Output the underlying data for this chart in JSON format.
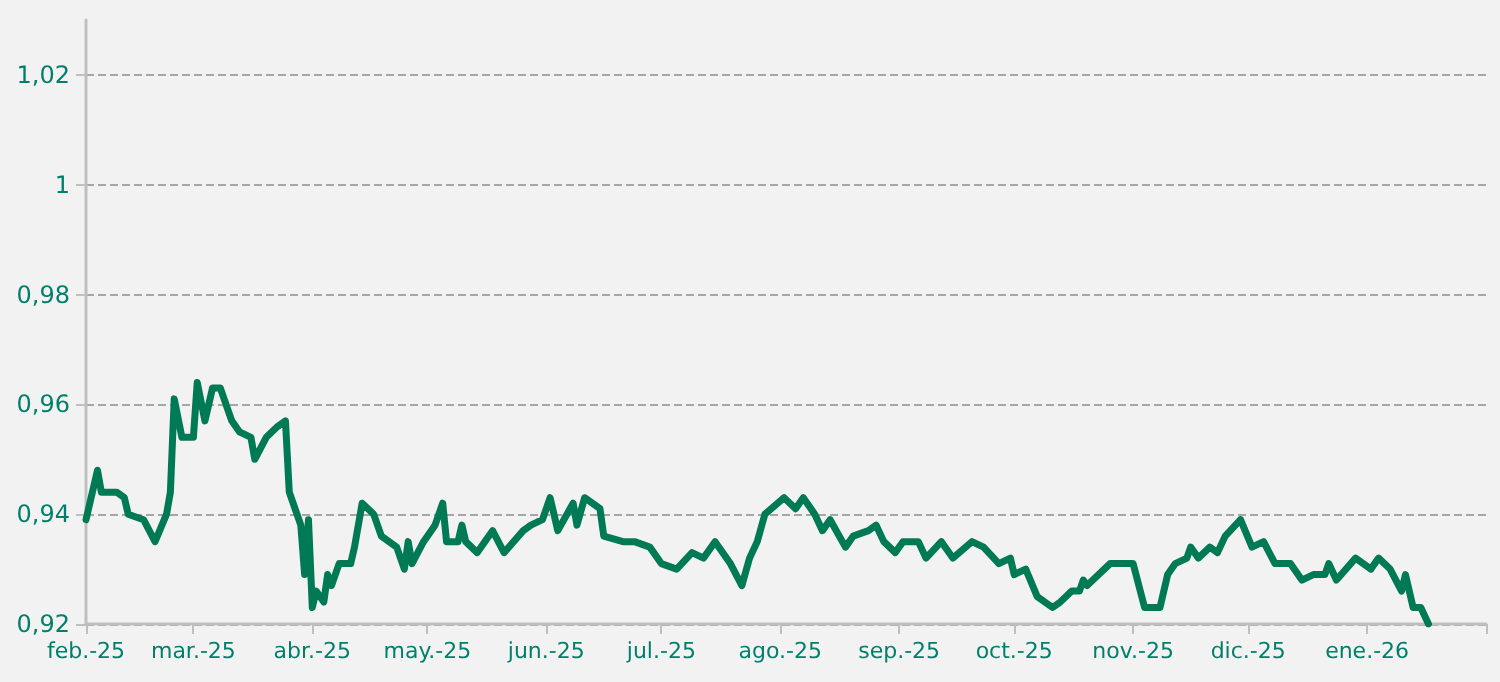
{
  "chart_data": {
    "type": "line",
    "line_style": "solid",
    "marker": "none",
    "grid": "y",
    "xlim": [
      "2025-02-01",
      "2026-02-01"
    ],
    "xticks": [
      {
        "value": "2025-02-01",
        "label": "feb.-25"
      },
      {
        "value": "2025-03-01",
        "label": "mar.-25"
      },
      {
        "value": "2025-04-01",
        "label": "abr.-25"
      },
      {
        "value": "2025-05-01",
        "label": "may.-25"
      },
      {
        "value": "2025-06-01",
        "label": "jun.-25"
      },
      {
        "value": "2025-07-01",
        "label": "jul.-25"
      },
      {
        "value": "2025-08-01",
        "label": "ago.-25"
      },
      {
        "value": "2025-09-01",
        "label": "sep.-25"
      },
      {
        "value": "2025-10-01",
        "label": "oct.-25"
      },
      {
        "value": "2025-11-01",
        "label": "nov.-25"
      },
      {
        "value": "2025-12-01",
        "label": "dic.-25"
      },
      {
        "value": "2026-01-01",
        "label": "ene.-26"
      },
      {
        "value": "2026-02-01",
        "label": null
      }
    ],
    "ylim": [
      0.92,
      1.03
    ],
    "yticks": [
      {
        "value": 0.92,
        "label": "0,92"
      },
      {
        "value": 0.94,
        "label": "0,94"
      },
      {
        "value": 0.96,
        "label": "0,96"
      },
      {
        "value": 0.98,
        "label": "0,98"
      },
      1,
      {
        "value": 1.02,
        "label": "1,02"
      }
    ],
    "series": [
      {
        "color": "#007a55",
        "x": [
          "2025-02-01",
          "2025-02-04",
          "2025-02-05",
          "2025-02-09",
          "2025-02-11",
          "2025-02-12",
          "2025-02-16",
          "2025-02-19",
          "2025-02-22",
          "2025-02-23",
          "2025-02-24",
          "2025-02-26",
          "2025-03-01",
          "2025-03-02",
          "2025-03-04",
          "2025-03-06",
          "2025-03-08",
          "2025-03-11",
          "2025-03-13",
          "2025-03-16",
          "2025-03-17",
          "2025-03-20",
          "2025-03-23",
          "2025-03-25",
          "2025-03-26",
          "2025-03-28",
          "2025-03-29",
          "2025-03-30",
          "2025-03-31",
          "2025-04-01",
          "2025-04-02",
          "2025-04-04",
          "2025-04-05",
          "2025-04-06",
          "2025-04-08",
          "2025-04-11",
          "2025-04-12",
          "2025-04-14",
          "2025-04-17",
          "2025-04-19",
          "2025-04-21",
          "2025-04-23",
          "2025-04-25",
          "2025-04-26",
          "2025-04-27",
          "2025-04-30",
          "2025-05-03",
          "2025-05-05",
          "2025-05-06",
          "2025-05-09",
          "2025-05-10",
          "2025-05-11",
          "2025-05-14",
          "2025-05-18",
          "2025-05-21",
          "2025-05-26",
          "2025-05-28",
          "2025-05-31",
          "2025-06-02",
          "2025-06-04",
          "2025-06-08",
          "2025-06-09",
          "2025-06-11",
          "2025-06-15",
          "2025-06-16",
          "2025-06-21",
          "2025-06-24",
          "2025-06-28",
          "2025-07-01",
          "2025-07-05",
          "2025-07-09",
          "2025-07-12",
          "2025-07-15",
          "2025-07-19",
          "2025-07-22",
          "2025-07-24",
          "2025-07-26",
          "2025-07-28",
          "2025-08-02",
          "2025-08-05",
          "2025-08-07",
          "2025-08-10",
          "2025-08-12",
          "2025-08-14",
          "2025-08-18",
          "2025-08-20",
          "2025-08-24",
          "2025-08-26",
          "2025-08-28",
          "2025-08-31",
          "2025-09-02",
          "2025-09-06",
          "2025-09-08",
          "2025-09-12",
          "2025-09-15",
          "2025-09-20",
          "2025-09-23",
          "2025-09-27",
          "2025-09-30",
          "2025-10-01",
          "2025-10-04",
          "2025-10-07",
          "2025-10-11",
          "2025-10-13",
          "2025-10-16",
          "2025-10-18",
          "2025-10-19",
          "2025-10-20",
          "2025-10-26",
          "2025-10-29",
          "2025-11-01",
          "2025-11-04",
          "2025-11-08",
          "2025-11-10",
          "2025-11-12",
          "2025-11-15",
          "2025-11-16",
          "2025-11-18",
          "2025-11-21",
          "2025-11-23",
          "2025-11-25",
          "2025-11-29",
          "2025-12-02",
          "2025-12-05",
          "2025-12-08",
          "2025-12-12",
          "2025-12-15",
          "2025-12-18",
          "2025-12-21",
          "2025-12-22",
          "2025-12-24",
          "2025-12-29",
          "2025-12-31",
          "2026-01-02",
          "2026-01-04",
          "2026-01-07",
          "2026-01-10",
          "2026-01-11",
          "2026-01-13",
          "2026-01-15",
          "2026-01-17"
        ],
        "values": [
          0.939,
          0.948,
          0.944,
          0.944,
          0.943,
          0.94,
          0.939,
          0.935,
          0.94,
          0.944,
          0.961,
          0.954,
          0.954,
          0.964,
          0.957,
          0.963,
          0.963,
          0.957,
          0.955,
          0.954,
          0.95,
          0.954,
          0.956,
          0.957,
          0.944,
          0.94,
          0.938,
          0.929,
          0.939,
          0.923,
          0.926,
          0.924,
          0.929,
          0.927,
          0.931,
          0.931,
          0.934,
          0.942,
          0.94,
          0.936,
          0.935,
          0.934,
          0.93,
          0.935,
          0.931,
          0.935,
          0.938,
          0.942,
          0.935,
          0.935,
          0.938,
          0.935,
          0.933,
          0.937,
          0.933,
          0.937,
          0.938,
          0.939,
          0.943,
          0.937,
          0.942,
          0.938,
          0.943,
          0.941,
          0.936,
          0.935,
          0.935,
          0.934,
          0.931,
          0.93,
          0.933,
          0.932,
          0.935,
          0.931,
          0.927,
          0.932,
          0.935,
          0.94,
          0.943,
          0.941,
          0.943,
          0.94,
          0.937,
          0.939,
          0.934,
          0.936,
          0.937,
          0.938,
          0.935,
          0.933,
          0.935,
          0.935,
          0.932,
          0.935,
          0.932,
          0.935,
          0.934,
          0.931,
          0.932,
          0.929,
          0.93,
          0.925,
          0.923,
          0.924,
          0.926,
          0.926,
          0.928,
          0.927,
          0.931,
          0.931,
          0.931,
          0.923,
          0.923,
          0.929,
          0.931,
          0.932,
          0.934,
          0.932,
          0.934,
          0.933,
          0.936,
          0.939,
          0.934,
          0.935,
          0.931,
          0.931,
          0.928,
          0.929,
          0.929,
          0.931,
          0.928,
          0.932,
          0.931,
          0.93,
          0.932,
          0.93,
          0.926,
          0.929,
          0.923,
          0.923,
          0.92
        ]
      }
    ]
  }
}
